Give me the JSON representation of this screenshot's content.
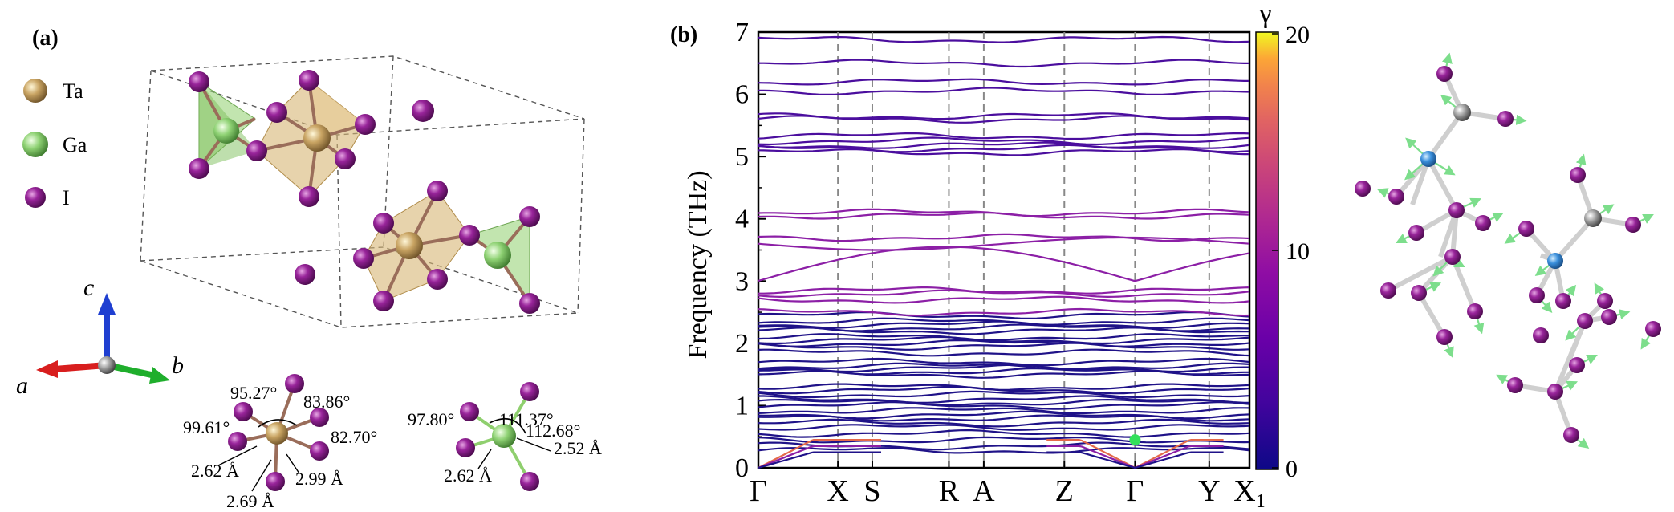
{
  "panel_a": {
    "label": "(a)",
    "legend": [
      {
        "name": "Ta",
        "color": "#b8965a"
      },
      {
        "name": "Ga",
        "color": "#8ed07a"
      },
      {
        "name": "I",
        "color": "#8a2a8c"
      }
    ],
    "axes": {
      "a": "a",
      "b": "b",
      "c": "c"
    },
    "ta_angles": [
      "95.27°",
      "83.86°",
      "99.61°",
      "82.70°"
    ],
    "ta_bonds": [
      "2.62 Å",
      "2.99 Å",
      "2.69 Å"
    ],
    "ga_angles": [
      "111.37°",
      "97.80°",
      "112.68°"
    ],
    "ga_bonds": [
      "2.52 Å",
      "2.62 Å"
    ]
  },
  "panel_b": {
    "label": "(b)",
    "colorbar": {
      "label": "γ",
      "ticks": [
        "20",
        "10",
        "0"
      ],
      "range": [
        0,
        20
      ]
    }
  },
  "chart_data": {
    "type": "line",
    "title": "",
    "xlabel": "",
    "ylabel": "Frequency (THz)",
    "ylim": [
      0,
      7
    ],
    "yticks": [
      "0",
      "1",
      "2",
      "3",
      "4",
      "5",
      "6",
      "7"
    ],
    "kpath": [
      "Γ",
      "X",
      "S",
      "R",
      "A",
      "Z",
      "Γ",
      "Y",
      "X1"
    ],
    "kpath_positions": [
      0,
      0.162,
      0.232,
      0.388,
      0.459,
      0.623,
      0.767,
      0.918,
      1.0
    ],
    "series_colors": {
      "bands": "#4b0e9e",
      "dense_low": "#1f1288",
      "acoustic_high": "#e4694a",
      "mid_high": "#8c1fa6"
    },
    "bands": [
      0.28,
      0.35,
      0.45,
      0.55,
      0.65,
      0.72,
      0.8,
      0.85,
      0.92,
      1.0,
      1.05,
      1.1,
      1.18,
      1.25,
      1.3,
      1.5,
      1.55,
      1.6,
      1.63,
      1.7,
      1.85,
      1.95,
      2.0,
      2.05,
      2.1,
      2.2,
      2.25,
      2.3,
      2.35,
      2.45,
      2.5,
      2.7,
      2.8,
      2.85,
      3.05,
      3.6,
      3.7,
      4.05,
      4.1,
      5.07,
      5.13,
      5.18,
      5.25,
      5.33,
      5.6,
      5.65,
      6.05,
      6.2,
      6.5,
      6.88
    ],
    "highlight_point": {
      "label": "Γ",
      "frequency": 0.45,
      "color": "#33e05a"
    }
  }
}
